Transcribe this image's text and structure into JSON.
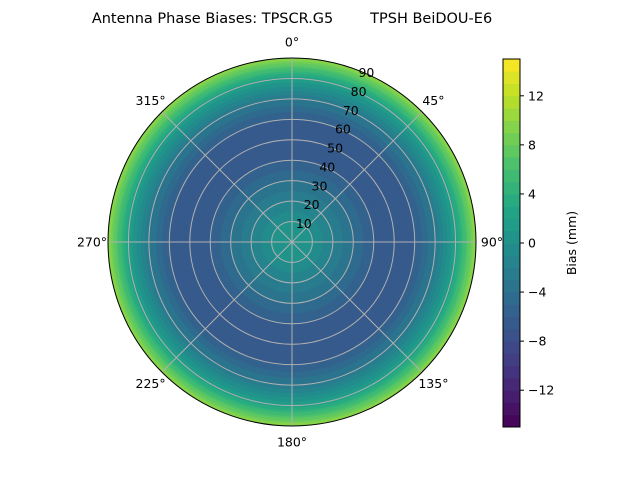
{
  "chart_data": {
    "type": "heatmap",
    "subtype": "polar-contour",
    "title": "Antenna Phase Biases: TPSCR.G5        TPSH BeiDOU-E6",
    "angle_ticks": [
      "0°",
      "45°",
      "90°",
      "135°",
      "180°",
      "225°",
      "270°",
      "315°"
    ],
    "angle_tick_values": [
      0,
      45,
      90,
      135,
      180,
      225,
      270,
      315
    ],
    "radial_ticks": [
      "10",
      "20",
      "30",
      "40",
      "50",
      "60",
      "70",
      "80",
      "90"
    ],
    "radial_tick_values": [
      10,
      20,
      30,
      40,
      50,
      60,
      70,
      80,
      90
    ],
    "rlim": [
      0,
      90
    ],
    "radial_profile": {
      "zenith_deg": [
        0,
        10,
        20,
        30,
        40,
        50,
        60,
        70,
        80,
        90
      ],
      "bias_mm": [
        1,
        0,
        -2,
        -4,
        -6,
        -7,
        -6,
        -3,
        2,
        10
      ]
    },
    "colormap": "viridis",
    "colorbar": {
      "label": "Bias (mm)",
      "range": [
        -15,
        15
      ],
      "level_step": 1,
      "ticks": [
        "−12",
        "−8",
        "−4",
        "0",
        "4",
        "8",
        "12"
      ],
      "tick_values": [
        -12,
        -8,
        -4,
        0,
        4,
        8,
        12
      ]
    },
    "grid": true
  }
}
